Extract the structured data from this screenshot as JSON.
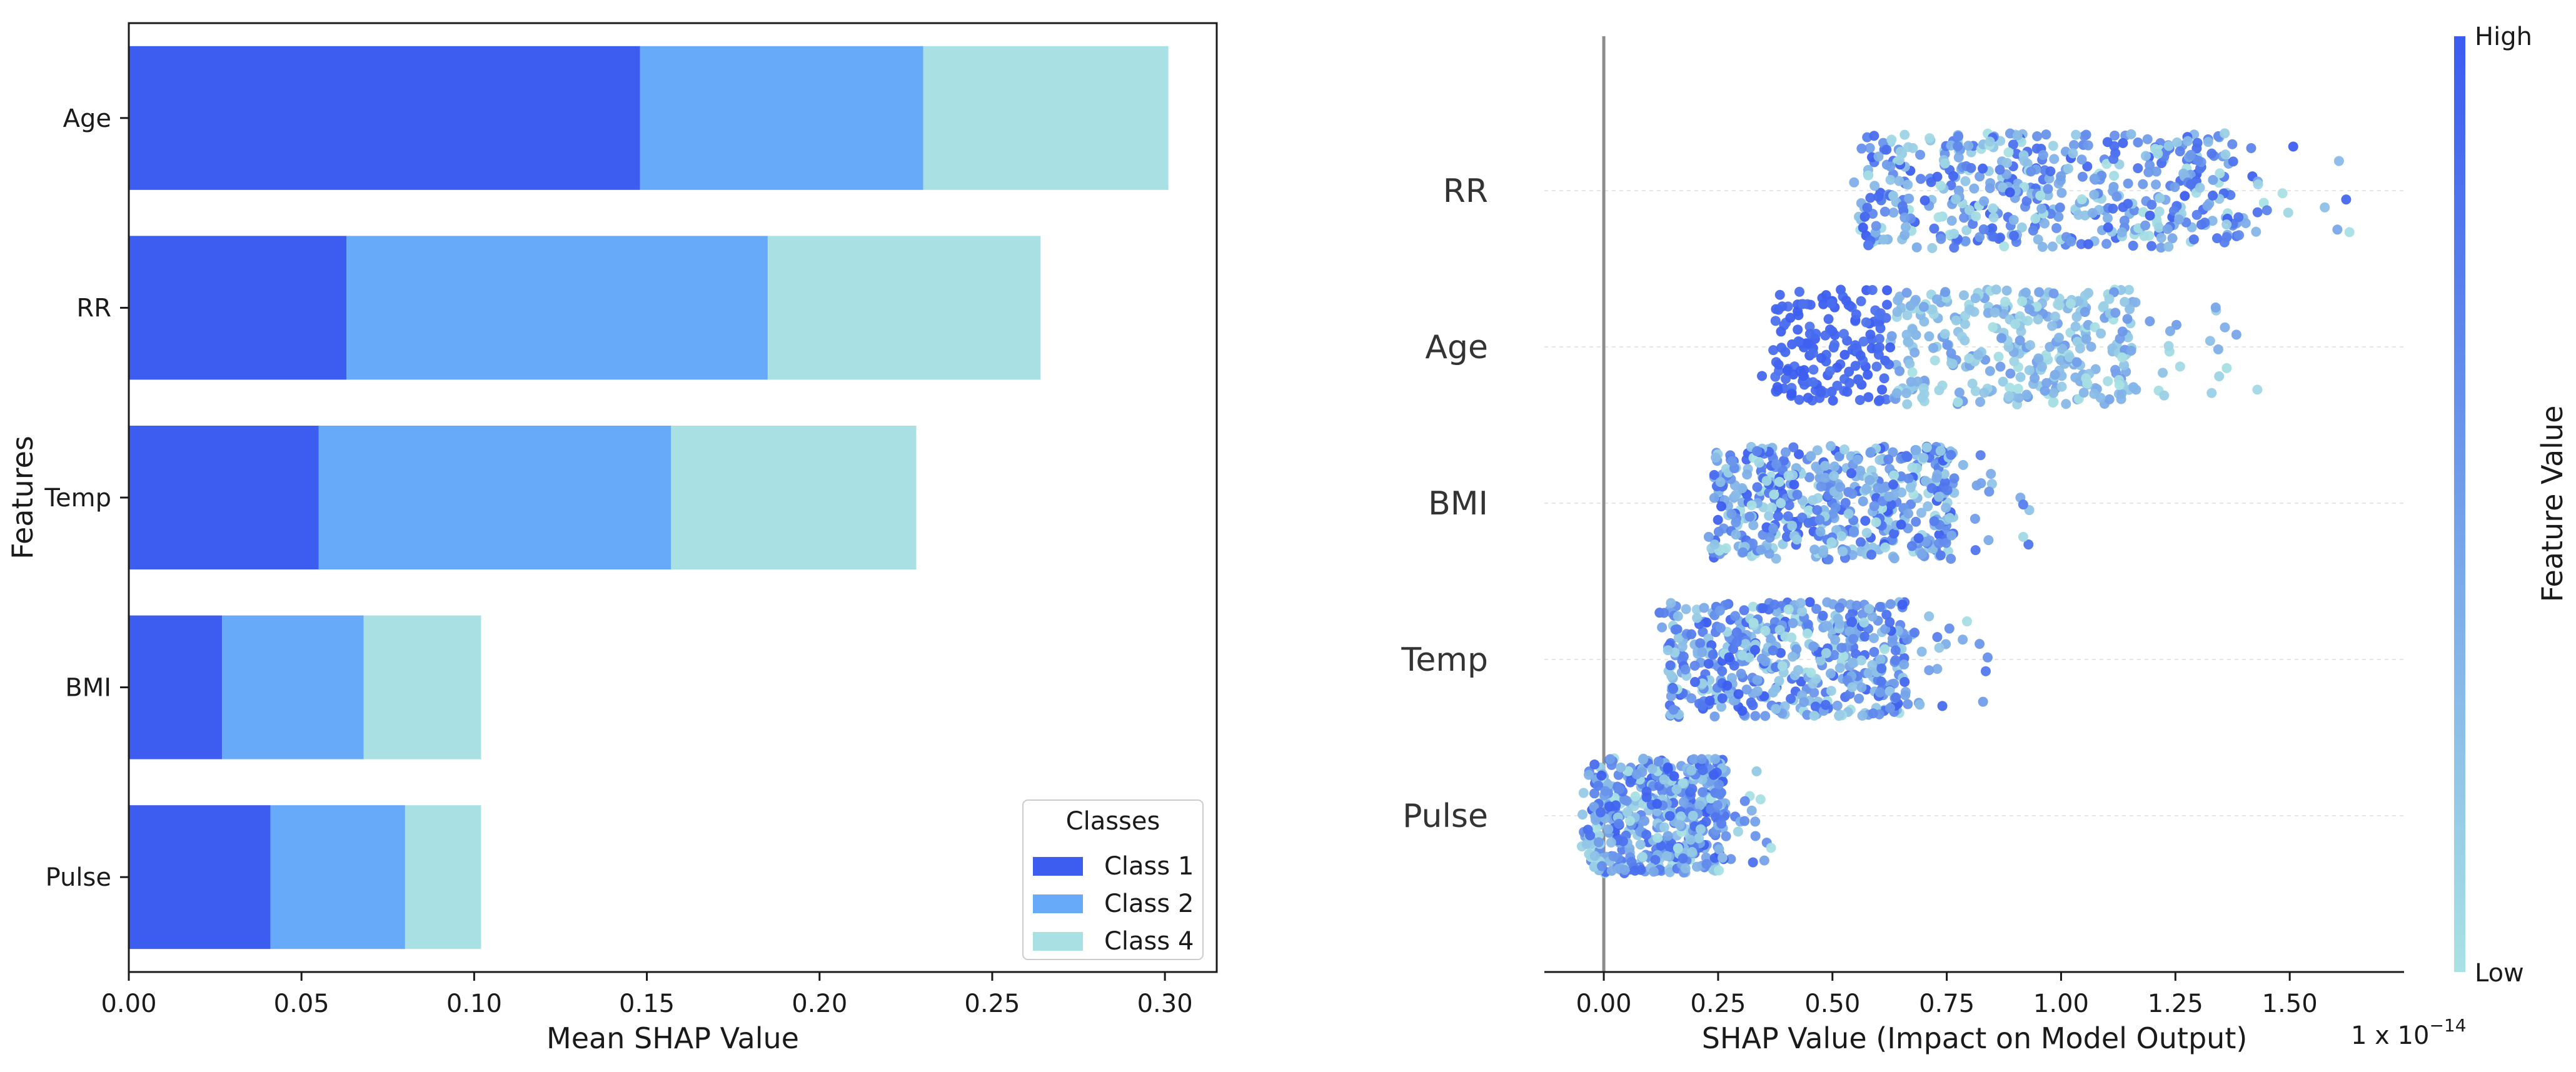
{
  "colors": {
    "class1": "#3d5cf0",
    "class2": "#68aafa",
    "class4": "#a8e0e3",
    "cbar_high": "#3b5cf0",
    "cbar_low": "#a9e2e4"
  },
  "chart_data": [
    {
      "type": "bar",
      "orientation": "horizontal",
      "stacked": true,
      "categories": [
        "Age",
        "RR",
        "Temp",
        "BMI",
        "Pulse"
      ],
      "series": [
        {
          "name": "Class 1",
          "values": [
            0.148,
            0.063,
            0.055,
            0.027,
            0.041
          ]
        },
        {
          "name": "Class 2",
          "values": [
            0.082,
            0.122,
            0.102,
            0.041,
            0.039
          ]
        },
        {
          "name": "Class 4",
          "values": [
            0.071,
            0.079,
            0.071,
            0.034,
            0.022
          ]
        }
      ],
      "xlabel": "Mean SHAP Value",
      "ylabel": "Features",
      "xlim": [
        0,
        0.315
      ],
      "xticks": [
        "0.00",
        "0.05",
        "0.10",
        "0.15",
        "0.20",
        "0.25",
        "0.30"
      ],
      "legend": {
        "title": "Classes",
        "position": "lower-right"
      }
    },
    {
      "type": "scatter",
      "subtype": "beeswarm",
      "categories": [
        "RR",
        "Age",
        "BMI",
        "Temp",
        "Pulse"
      ],
      "ranges": [
        {
          "feature": "RR",
          "min": 0.51,
          "max": 1.67
        },
        {
          "feature": "Age",
          "min": 0.33,
          "max": 1.43
        },
        {
          "feature": "BMI",
          "min": 0.21,
          "max": 0.94
        },
        {
          "feature": "Temp",
          "min": 0.11,
          "max": 0.84
        },
        {
          "feature": "Pulse",
          "min": -0.05,
          "max": 0.37
        }
      ],
      "xlabel": "SHAP Value (Impact on Model Output)",
      "x_scale_label": "1 x 10",
      "x_scale_exp": "−14",
      "xlim": [
        -0.13,
        1.75
      ],
      "xticks": [
        "0.00",
        "0.25",
        "0.50",
        "0.75",
        "1.00",
        "1.25",
        "1.50"
      ],
      "colorbar": {
        "label": "Feature Value",
        "high": "High",
        "low": "Low"
      }
    }
  ]
}
